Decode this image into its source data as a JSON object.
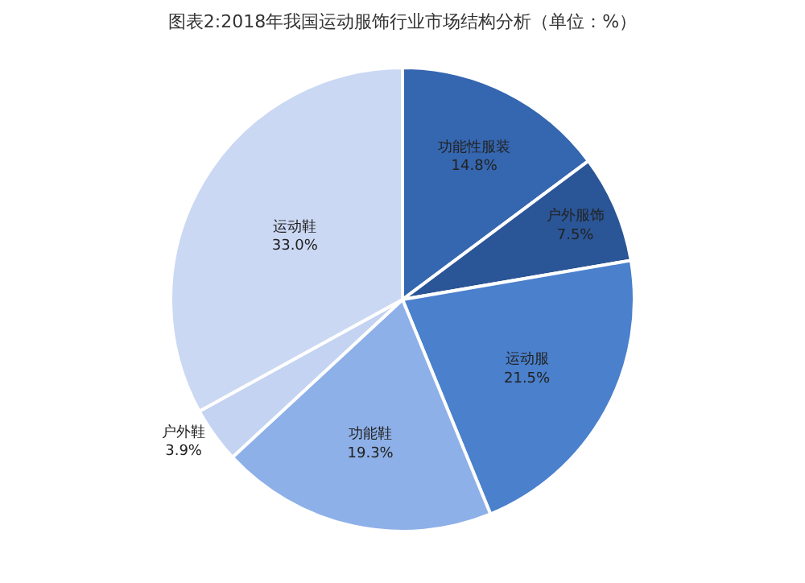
{
  "chart_data": {
    "type": "pie",
    "title": "图表2:2018年我国运动服饰行业市场结构分析（单位：%）",
    "categories": [
      "功能性服装",
      "户外服饰",
      "运动服",
      "功能鞋",
      "户外鞋",
      "运动鞋"
    ],
    "values": [
      14.8,
      7.5,
      21.5,
      19.3,
      3.9,
      33.0
    ],
    "value_labels": [
      "14.8%",
      "7.5%",
      "21.5%",
      "19.3%",
      "3.9%",
      "33.0%"
    ],
    "colors": [
      "#3566b0",
      "#2a5596",
      "#4a80cc",
      "#8eb0e8",
      "#c3d3f1",
      "#cbd8f3"
    ],
    "legend": false
  }
}
